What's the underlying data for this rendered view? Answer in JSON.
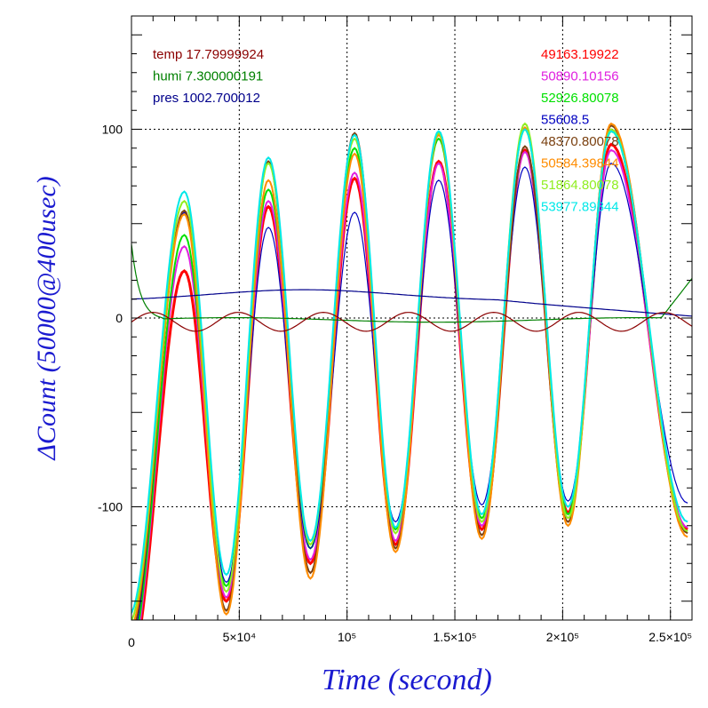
{
  "chart_data": {
    "type": "line",
    "xlabel": "Time (second)",
    "ylabel": "ΔCount (50000@400usec)",
    "xlim": [
      0,
      260000
    ],
    "ylim": [
      -160,
      160
    ],
    "x_ticks": [
      {
        "value": 0,
        "label": "0"
      },
      {
        "value": 50000,
        "label": "5×10⁴"
      },
      {
        "value": 100000,
        "label": "10⁵"
      },
      {
        "value": 150000,
        "label": "1.5×10⁵"
      },
      {
        "value": 200000,
        "label": "2×10⁵"
      },
      {
        "value": 250000,
        "label": "2.5×10⁵"
      }
    ],
    "y_ticks": [
      {
        "value": 100,
        "label": "100"
      },
      {
        "value": 0,
        "label": "0"
      },
      {
        "value": -100,
        "label": "-100"
      }
    ],
    "grid": true,
    "env_legend": [
      {
        "label": "temp 17.79999924",
        "color": "#8b0000"
      },
      {
        "label": "humi 7.300000191",
        "color": "#008000"
      },
      {
        "label": "pres 1002.700012",
        "color": "#00008b"
      }
    ],
    "legend_placement": "top-right",
    "series": [
      {
        "name": "49163.19922",
        "color": "#ff0000",
        "peaks": [
          [
            24500,
            25
          ],
          [
            63500,
            59
          ],
          [
            103500,
            74
          ],
          [
            142500,
            83
          ],
          [
            182500,
            89
          ],
          [
            222500,
            92
          ]
        ],
        "troughs": [
          [
            44000,
            -150
          ],
          [
            83000,
            -130
          ],
          [
            122500,
            -120
          ],
          [
            162500,
            -112
          ],
          [
            202500,
            -103
          ],
          [
            258000,
            -112
          ]
        ]
      },
      {
        "name": "50890.10156",
        "color": "#e020e0",
        "peaks": [
          [
            24500,
            38
          ],
          [
            63500,
            62
          ],
          [
            103500,
            77
          ],
          [
            142500,
            82
          ],
          [
            182500,
            88
          ],
          [
            222500,
            89
          ]
        ],
        "troughs": [
          [
            44000,
            -148
          ],
          [
            83000,
            -128
          ],
          [
            122500,
            -118
          ],
          [
            162500,
            -110
          ],
          [
            202500,
            -104
          ],
          [
            258000,
            -111
          ]
        ]
      },
      {
        "name": "52926.80078",
        "color": "#00e000",
        "peaks": [
          [
            24500,
            44
          ],
          [
            63500,
            68
          ],
          [
            103500,
            90
          ],
          [
            142500,
            95
          ],
          [
            182500,
            100
          ],
          [
            222500,
            99
          ]
        ],
        "troughs": [
          [
            44000,
            -142
          ],
          [
            83000,
            -122
          ],
          [
            122500,
            -112
          ],
          [
            162500,
            -106
          ],
          [
            202500,
            -104
          ],
          [
            258000,
            -113
          ]
        ]
      },
      {
        "name": "55608.5",
        "color": "#0000c0",
        "peaks": [
          [
            24500,
            56
          ],
          [
            63500,
            48
          ],
          [
            103500,
            56
          ],
          [
            142500,
            73
          ],
          [
            182500,
            80
          ],
          [
            222500,
            82
          ]
        ],
        "troughs": [
          [
            44000,
            -140
          ],
          [
            83000,
            -122
          ],
          [
            122500,
            -108
          ],
          [
            162500,
            -99
          ],
          [
            202500,
            -97
          ],
          [
            258000,
            -98
          ]
        ]
      },
      {
        "name": "48370.80078",
        "color": "#7a4010",
        "peaks": [
          [
            24500,
            57
          ],
          [
            63500,
            83
          ],
          [
            103500,
            98
          ],
          [
            142500,
            98
          ],
          [
            182500,
            91
          ],
          [
            222500,
            102
          ]
        ],
        "troughs": [
          [
            44000,
            -155
          ],
          [
            83000,
            -135
          ],
          [
            122500,
            -122
          ],
          [
            162500,
            -115
          ],
          [
            202500,
            -108
          ],
          [
            258000,
            -114
          ]
        ]
      },
      {
        "name": "50584.39844",
        "color": "#ff8c00",
        "peaks": [
          [
            24500,
            55
          ],
          [
            63500,
            73
          ],
          [
            103500,
            87
          ],
          [
            142500,
            97
          ],
          [
            182500,
            101
          ],
          [
            222500,
            103
          ]
        ],
        "troughs": [
          [
            44000,
            -157
          ],
          [
            83000,
            -138
          ],
          [
            122500,
            -124
          ],
          [
            162500,
            -117
          ],
          [
            202500,
            -110
          ],
          [
            258000,
            -116
          ]
        ]
      },
      {
        "name": "51864.80078",
        "color": "#90ee20",
        "peaks": [
          [
            24500,
            62
          ],
          [
            63500,
            82
          ],
          [
            103500,
            95
          ],
          [
            142500,
            98
          ],
          [
            182500,
            103
          ],
          [
            222500,
            100
          ]
        ],
        "troughs": [
          [
            44000,
            -145
          ],
          [
            83000,
            -120
          ],
          [
            122500,
            -114
          ],
          [
            162500,
            -108
          ],
          [
            202500,
            -106
          ],
          [
            258000,
            -113
          ]
        ]
      },
      {
        "name": "53977.89844",
        "color": "#00e8e8",
        "peaks": [
          [
            24500,
            67
          ],
          [
            63500,
            85
          ],
          [
            103500,
            97
          ],
          [
            142500,
            99
          ],
          [
            182500,
            100
          ],
          [
            222500,
            99
          ]
        ],
        "troughs": [
          [
            44000,
            -136
          ],
          [
            83000,
            -118
          ],
          [
            122500,
            -111
          ],
          [
            162500,
            -104
          ],
          [
            202500,
            -100
          ],
          [
            258000,
            -108
          ]
        ]
      }
    ]
  }
}
